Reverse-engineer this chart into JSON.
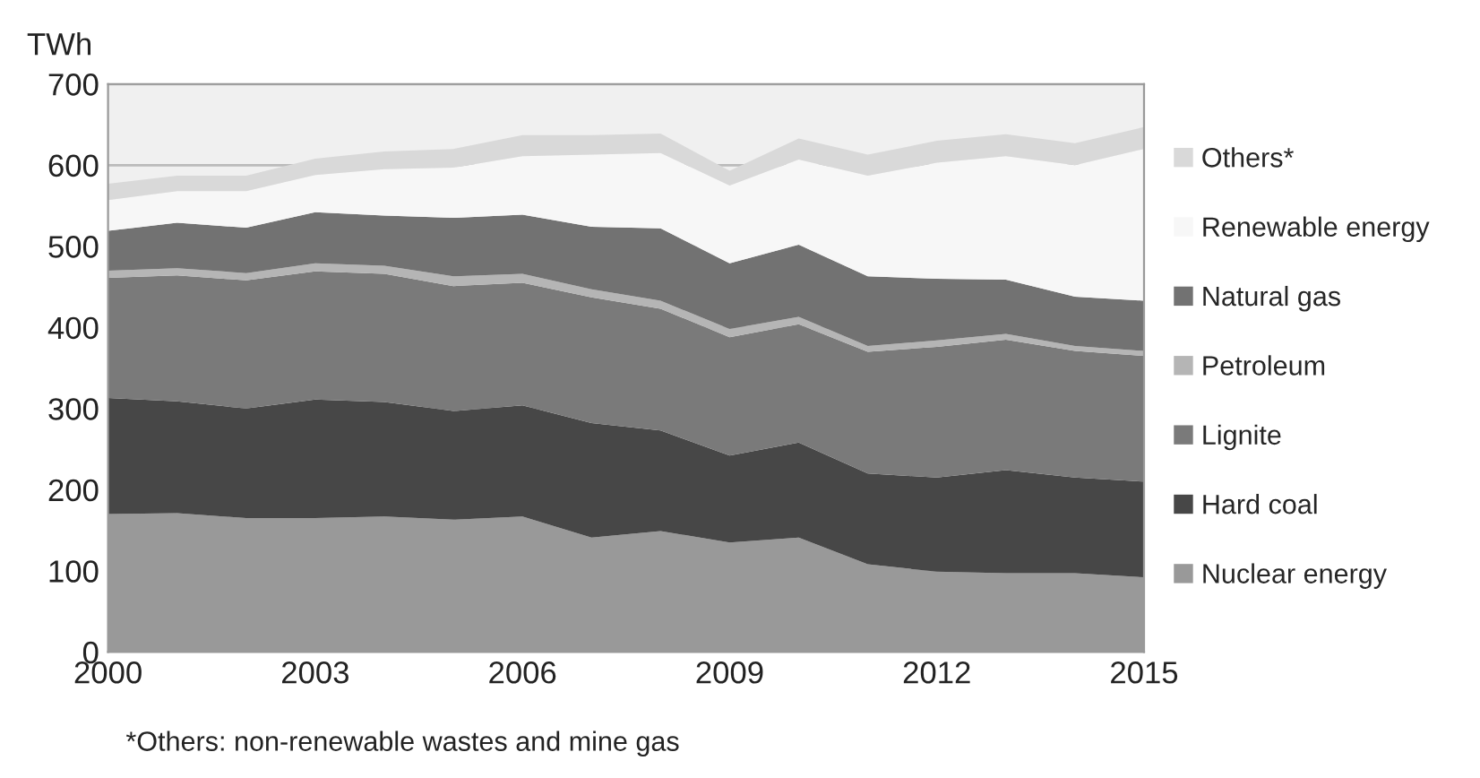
{
  "chart_data": {
    "type": "area",
    "stacked": true,
    "ylabel": "TWh",
    "x": [
      2000,
      2001,
      2002,
      2003,
      2004,
      2005,
      2006,
      2007,
      2008,
      2009,
      2010,
      2011,
      2012,
      2013,
      2014,
      2015
    ],
    "xlim": [
      2000,
      2015
    ],
    "xticks": [
      2000,
      2003,
      2006,
      2009,
      2012,
      2015
    ],
    "ylim": [
      0,
      700
    ],
    "yticks": [
      0,
      100,
      200,
      300,
      400,
      500,
      600,
      700
    ],
    "grid": "y",
    "legend": "right",
    "series": [
      {
        "name": "Nuclear energy",
        "color": "#999999",
        "values": [
          170,
          171,
          165,
          165,
          167,
          163,
          167,
          141,
          149,
          135,
          141,
          108,
          99,
          97,
          97,
          92
        ]
      },
      {
        "name": "Hard coal",
        "color": "#474747",
        "values": [
          143,
          138,
          135,
          146,
          141,
          134,
          137,
          141,
          124,
          107,
          117,
          112,
          116,
          127,
          118,
          118
        ]
      },
      {
        "name": "Lignite",
        "color": "#7a7a7a",
        "values": [
          148,
          155,
          158,
          158,
          158,
          154,
          151,
          155,
          150,
          146,
          146,
          150,
          161,
          161,
          156,
          155
        ]
      },
      {
        "name": "Petroleum",
        "color": "#b5b5b5",
        "values": [
          9,
          9,
          9,
          10,
          10,
          12,
          11,
          10,
          10,
          10,
          9,
          7,
          8,
          7,
          6,
          6
        ]
      },
      {
        "name": "Natural gas",
        "color": "#727272",
        "values": [
          49,
          56,
          56,
          63,
          62,
          72,
          73,
          77,
          89,
          81,
          89,
          86,
          76,
          67,
          61,
          62
        ]
      },
      {
        "name": "Renewable energy",
        "color": "#f7f7f7",
        "values": [
          38,
          39,
          45,
          46,
          57,
          62,
          72,
          89,
          93,
          96,
          105,
          124,
          143,
          152,
          162,
          187
        ]
      },
      {
        "name": "Others*",
        "color": "#d9d9d9",
        "values": [
          20,
          19,
          19,
          20,
          22,
          23,
          26,
          24,
          24,
          18,
          26,
          26,
          27,
          27,
          27,
          27
        ]
      }
    ],
    "annotations": [
      "*Others: non-renewable wastes and mine gas"
    ]
  }
}
